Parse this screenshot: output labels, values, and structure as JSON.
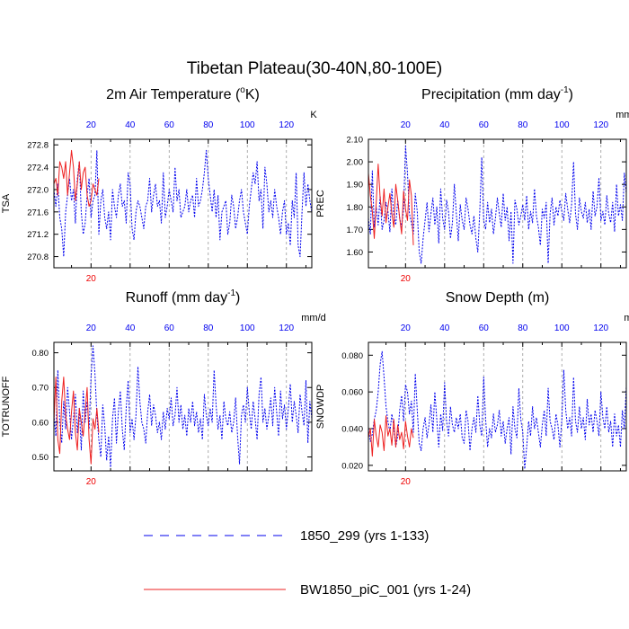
{
  "title": "Tibetan Plateau(30-40N,80-100E)",
  "colors": {
    "series_1850": "#0000ee",
    "series_bw": "#ee2020",
    "top_ticks": "#0000ee",
    "bottom_ticks": "#ee0000",
    "frame": "#000000",
    "grid": "#999999"
  },
  "legend": {
    "entries": [
      {
        "label": "1850_299 (yrs 1-133)",
        "style": "dashed",
        "color": "#0000ee"
      },
      {
        "label": "BW1850_piC_001 (yrs 1-24)",
        "style": "solid",
        "color": "#ee2020"
      }
    ]
  },
  "chart_data": [
    {
      "type": "line",
      "title": "2m Air Temperature (°K)",
      "title_main": "2m Air Temperature (",
      "title_sup": "o",
      "title_tail": "K)",
      "ylabel": "TSA",
      "units": "K",
      "xlim": [
        1,
        133
      ],
      "ylim": [
        270.6,
        272.9
      ],
      "yticks": [
        270.8,
        271.2,
        271.6,
        272.0,
        272.4,
        272.8
      ],
      "ytick_labels": [
        "270.8",
        "271.2",
        "271.6",
        "272.0",
        "272.4",
        "272.8"
      ],
      "top_xtick_labels": [
        "20",
        "40",
        "60",
        "80",
        "100",
        "120"
      ],
      "bottom_xtick_labels": [
        "20"
      ],
      "series": [
        {
          "name": "1850_299 (yrs 1-133)",
          "x_start": 1,
          "values": [
            272.0,
            271.7,
            272.1,
            271.5,
            271.3,
            270.8,
            271.6,
            271.9,
            272.2,
            271.8,
            272.0,
            271.4,
            272.2,
            272.5,
            271.6,
            271.2,
            271.4,
            271.9,
            272.2,
            271.5,
            271.8,
            271.9,
            272.7,
            271.2,
            271.8,
            272.0,
            271.5,
            271.3,
            271.6,
            271.1,
            272.0,
            271.7,
            271.5,
            271.9,
            272.1,
            271.7,
            271.8,
            271.4,
            272.3,
            272.1,
            271.3,
            271.1,
            271.6,
            271.8,
            271.7,
            271.5,
            271.3,
            271.7,
            271.8,
            272.2,
            271.6,
            271.9,
            272.1,
            271.7,
            271.8,
            271.4,
            272.3,
            271.5,
            271.7,
            272.0,
            271.8,
            271.6,
            272.4,
            271.8,
            272.0,
            271.5,
            271.6,
            271.7,
            272.0,
            271.6,
            271.8,
            271.9,
            271.5,
            272.2,
            271.7,
            271.8,
            272.0,
            272.3,
            272.7,
            272.2,
            271.9,
            271.6,
            272.0,
            271.5,
            271.9,
            271.1,
            271.6,
            271.7,
            271.8,
            271.2,
            271.4,
            271.9,
            271.7,
            271.3,
            271.5,
            271.8,
            272.0,
            271.6,
            271.4,
            271.2,
            271.7,
            272.0,
            272.3,
            272.1,
            272.5,
            271.8,
            272.0,
            271.3,
            272.4,
            272.1,
            271.6,
            271.8,
            271.5,
            272.0,
            271.7,
            271.5,
            271.2,
            271.6,
            271.8,
            271.2,
            271.4,
            271.0,
            271.8,
            271.5,
            272.3,
            271.0,
            270.8,
            271.6,
            272.3,
            271.7,
            272.1,
            271.8,
            271.6
          ]
        },
        {
          "name": "BW1850_piC_001 (yrs 1-24)",
          "x_start": 1,
          "values": [
            272.1,
            272.2,
            271.9,
            272.5,
            272.4,
            272.2,
            272.5,
            271.9,
            272.3,
            272.7,
            272.4,
            271.8,
            272.1,
            272.5,
            272.0,
            272.3,
            272.4,
            271.9,
            271.7,
            271.8,
            272.1,
            272.0,
            271.9,
            272.2
          ]
        }
      ]
    },
    {
      "type": "line",
      "title": "Precipitation (mm day⁻¹)",
      "title_main": "Precipitation (mm day",
      "title_sup": "-1",
      "title_tail": ")",
      "ylabel": "PREC",
      "units": "mm/d",
      "xlim": [
        1,
        133
      ],
      "ylim": [
        1.53,
        2.1
      ],
      "yticks": [
        1.6,
        1.7,
        1.8,
        1.9,
        2.0,
        2.1
      ],
      "ytick_labels": [
        "1.60",
        "1.70",
        "1.80",
        "1.90",
        "2.00",
        "2.10"
      ],
      "top_xtick_labels": [
        "20",
        "40",
        "60",
        "80",
        "100",
        "120"
      ],
      "bottom_xtick_labels": [
        "20"
      ],
      "series": [
        {
          "name": "1850_299 (yrs 1-133)",
          "x_start": 1,
          "values": [
            1.75,
            1.68,
            1.96,
            1.71,
            1.8,
            1.72,
            1.85,
            1.7,
            1.74,
            1.82,
            1.78,
            1.69,
            1.88,
            1.76,
            1.72,
            1.83,
            1.75,
            1.71,
            1.79,
            2.07,
            1.95,
            1.77,
            1.73,
            1.68,
            1.86,
            1.78,
            1.6,
            1.55,
            1.66,
            1.74,
            1.82,
            1.69,
            1.77,
            1.84,
            1.72,
            1.8,
            1.64,
            1.88,
            1.75,
            1.7,
            1.83,
            1.78,
            1.66,
            1.73,
            1.9,
            1.77,
            1.65,
            1.81,
            1.74,
            1.7,
            1.84,
            1.79,
            1.72,
            1.68,
            1.76,
            1.66,
            1.6,
            1.78,
            2.02,
            1.74,
            1.7,
            1.82,
            1.73,
            1.79,
            1.68,
            1.75,
            1.84,
            1.77,
            1.71,
            1.86,
            1.74,
            1.8,
            1.65,
            1.78,
            1.55,
            1.83,
            1.79,
            1.72,
            1.76,
            1.81,
            1.74,
            1.85,
            1.7,
            1.78,
            1.73,
            1.88,
            1.76,
            1.71,
            1.63,
            1.79,
            1.75,
            1.82,
            1.55,
            1.77,
            1.84,
            1.72,
            1.8,
            1.76,
            1.83,
            1.78,
            1.74,
            1.86,
            1.79,
            1.73,
            1.81,
            2.0,
            1.77,
            1.7,
            1.84,
            1.78,
            1.75,
            1.82,
            1.73,
            1.79,
            1.7,
            1.87,
            1.76,
            1.8,
            1.93,
            1.74,
            1.78,
            1.72,
            1.85,
            1.77,
            1.73,
            1.82,
            1.69,
            1.9,
            1.76,
            1.81,
            1.74,
            1.95,
            1.86
          ]
        },
        {
          "name": "BW1850_piC_001 (yrs 1-24)",
          "x_start": 1,
          "values": [
            1.95,
            1.85,
            1.78,
            1.66,
            1.82,
            1.99,
            1.84,
            1.76,
            1.88,
            1.73,
            1.8,
            1.86,
            1.77,
            1.71,
            1.9,
            1.83,
            1.75,
            1.68,
            1.87,
            1.79,
            1.74,
            1.92,
            1.85,
            1.63
          ]
        }
      ]
    },
    {
      "type": "line",
      "title": "Runoff (mm day⁻¹)",
      "title_main": "Runoff (mm day",
      "title_sup": "-1",
      "title_tail": ")",
      "ylabel": "TOTRUNOFF",
      "units": "mm/d",
      "xlim": [
        1,
        133
      ],
      "ylim": [
        0.46,
        0.83
      ],
      "yticks": [
        0.5,
        0.6,
        0.7,
        0.8
      ],
      "ytick_labels": [
        "0.50",
        "0.60",
        "0.70",
        "0.80"
      ],
      "top_xtick_labels": [
        "20",
        "40",
        "60",
        "80",
        "100",
        "120"
      ],
      "bottom_xtick_labels": [
        "20"
      ],
      "series": [
        {
          "name": "1850_299 (yrs 1-133)",
          "x_start": 1,
          "values": [
            0.62,
            0.56,
            0.75,
            0.6,
            0.54,
            0.66,
            0.58,
            0.7,
            0.63,
            0.55,
            0.61,
            0.68,
            0.57,
            0.64,
            0.52,
            0.69,
            0.6,
            0.66,
            0.58,
            0.73,
            0.82,
            0.74,
            0.62,
            0.55,
            0.5,
            0.65,
            0.59,
            0.49,
            0.56,
            0.47,
            0.61,
            0.67,
            0.54,
            0.63,
            0.69,
            0.58,
            0.52,
            0.64,
            0.72,
            0.57,
            0.61,
            0.55,
            0.62,
            0.76,
            0.66,
            0.6,
            0.58,
            0.54,
            0.63,
            0.68,
            0.59,
            0.65,
            0.62,
            0.57,
            0.6,
            0.55,
            0.63,
            0.58,
            0.64,
            0.61,
            0.67,
            0.59,
            0.62,
            0.7,
            0.6,
            0.65,
            0.58,
            0.62,
            0.56,
            0.64,
            0.6,
            0.66,
            0.59,
            0.63,
            0.57,
            0.61,
            0.55,
            0.68,
            0.62,
            0.59,
            0.64,
            0.6,
            0.75,
            0.65,
            0.58,
            0.62,
            0.55,
            0.66,
            0.61,
            0.59,
            0.63,
            0.57,
            0.6,
            0.67,
            0.56,
            0.48,
            0.62,
            0.65,
            0.6,
            0.7,
            0.63,
            0.58,
            0.66,
            0.61,
            0.55,
            0.68,
            0.73,
            0.6,
            0.64,
            0.58,
            0.62,
            0.67,
            0.59,
            0.7,
            0.63,
            0.56,
            0.69,
            0.61,
            0.65,
            0.58,
            0.64,
            0.71,
            0.6,
            0.66,
            0.62,
            0.57,
            0.68,
            0.63,
            0.59,
            0.72,
            0.54,
            0.66,
            0.61
          ]
        },
        {
          "name": "BW1850_piC_001 (yrs 1-24)",
          "x_start": 1,
          "values": [
            0.6,
            0.73,
            0.55,
            0.51,
            0.66,
            0.73,
            0.62,
            0.58,
            0.55,
            0.63,
            0.69,
            0.57,
            0.52,
            0.64,
            0.6,
            0.56,
            0.63,
            0.7,
            0.55,
            0.48,
            0.61,
            0.58,
            0.64,
            0.57
          ]
        }
      ]
    },
    {
      "type": "line",
      "title": "Snow Depth (m)",
      "title_main": "Snow Depth (m)",
      "title_sup": "",
      "title_tail": "",
      "ylabel": "SNOWDP",
      "units": "m",
      "xlim": [
        1,
        133
      ],
      "ylim": [
        0.017,
        0.087
      ],
      "yticks": [
        0.02,
        0.04,
        0.06,
        0.08
      ],
      "ytick_labels": [
        "0.020",
        "0.040",
        "0.060",
        "0.080"
      ],
      "top_xtick_labels": [
        "20",
        "40",
        "60",
        "80",
        "100",
        "120"
      ],
      "bottom_xtick_labels": [
        "20"
      ],
      "series": [
        {
          "name": "1850_299 (yrs 1-133)",
          "x_start": 1,
          "values": [
            0.04,
            0.033,
            0.037,
            0.045,
            0.05,
            0.06,
            0.075,
            0.082,
            0.068,
            0.052,
            0.044,
            0.038,
            0.048,
            0.041,
            0.03,
            0.036,
            0.05,
            0.058,
            0.044,
            0.064,
            0.06,
            0.048,
            0.055,
            0.038,
            0.07,
            0.05,
            0.032,
            0.028,
            0.04,
            0.046,
            0.035,
            0.042,
            0.053,
            0.038,
            0.06,
            0.045,
            0.03,
            0.048,
            0.039,
            0.065,
            0.044,
            0.036,
            0.052,
            0.042,
            0.038,
            0.046,
            0.04,
            0.048,
            0.035,
            0.032,
            0.05,
            0.044,
            0.028,
            0.04,
            0.046,
            0.038,
            0.058,
            0.042,
            0.036,
            0.068,
            0.045,
            0.03,
            0.04,
            0.035,
            0.048,
            0.038,
            0.042,
            0.05,
            0.036,
            0.044,
            0.032,
            0.04,
            0.046,
            0.026,
            0.052,
            0.04,
            0.035,
            0.062,
            0.045,
            0.038,
            0.018,
            0.03,
            0.044,
            0.036,
            0.052,
            0.04,
            0.046,
            0.038,
            0.03,
            0.042,
            0.05,
            0.036,
            0.062,
            0.044,
            0.04,
            0.034,
            0.048,
            0.042,
            0.03,
            0.045,
            0.072,
            0.05,
            0.04,
            0.046,
            0.036,
            0.068,
            0.044,
            0.038,
            0.052,
            0.04,
            0.046,
            0.034,
            0.056,
            0.042,
            0.048,
            0.038,
            0.05,
            0.044,
            0.036,
            0.06,
            0.046,
            0.04,
            0.052,
            0.038,
            0.044,
            0.03,
            0.048,
            0.036,
            0.042,
            0.03,
            0.05,
            0.04,
            0.063
          ]
        },
        {
          "name": "BW1850_piC_001 (yrs 1-24)",
          "x_start": 1,
          "values": [
            0.035,
            0.04,
            0.025,
            0.045,
            0.036,
            0.03,
            0.042,
            0.038,
            0.028,
            0.047,
            0.036,
            0.04,
            0.031,
            0.045,
            0.03,
            0.042,
            0.034,
            0.038,
            0.029,
            0.044,
            0.036,
            0.03,
            0.04,
            0.035
          ]
        }
      ]
    }
  ]
}
